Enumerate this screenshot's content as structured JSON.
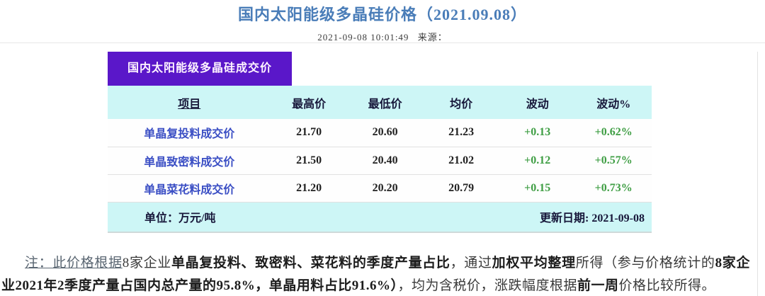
{
  "page": {
    "title": "国内太阳能级多晶硅价格（2021.09.08）",
    "time": "2021-09-08 10:01:49",
    "source_label": "来源："
  },
  "table": {
    "badge": "国内太阳能级多晶硅成交价",
    "headers": [
      "项目",
      "最高价",
      "最低价",
      "均价",
      "波动",
      "波动%"
    ],
    "rows": [
      {
        "item": "单晶复投料成交价",
        "high": "21.70",
        "low": "20.60",
        "avg": "21.23",
        "change": "+0.13",
        "change_pct": "+0.62%"
      },
      {
        "item": "单晶致密料成交价",
        "high": "21.50",
        "low": "20.40",
        "avg": "21.02",
        "change": "+0.12",
        "change_pct": "+0.57%"
      },
      {
        "item": "单晶菜花料成交价",
        "high": "21.20",
        "low": "20.20",
        "avg": "20.79",
        "change": "+0.15",
        "change_pct": "+0.73%"
      }
    ],
    "footer": {
      "unit": "单位：万元/吨",
      "updated": "更新日期: 2021-09-08"
    }
  },
  "note": {
    "segments": [
      {
        "text": "注：此价格根据",
        "style": "ul"
      },
      {
        "text": "8家企业",
        "style": ""
      },
      {
        "text": "单晶复投料、致密料、菜花料的季度产量占比",
        "style": "b"
      },
      {
        "text": "，通过",
        "style": ""
      },
      {
        "text": "加权平均整理",
        "style": "b"
      },
      {
        "text": "所得（参与价格统计的",
        "style": ""
      },
      {
        "text": "8家企业2021年2季度产量占国内总产量的95.8%，单晶用料占比91.6%）",
        "style": "b"
      },
      {
        "text": "，均为含税价，涨跌幅度根据",
        "style": ""
      },
      {
        "text": "前一周",
        "style": "b"
      },
      {
        "text": "价格比较所得。",
        "style": ""
      }
    ]
  },
  "colors": {
    "title_blue": "#4a7db8",
    "badge_purple": "#5a17c9",
    "table_cyan": "#cdf6f6",
    "item_blue": "#3a4ec4",
    "change_green": "#3f9e44"
  }
}
